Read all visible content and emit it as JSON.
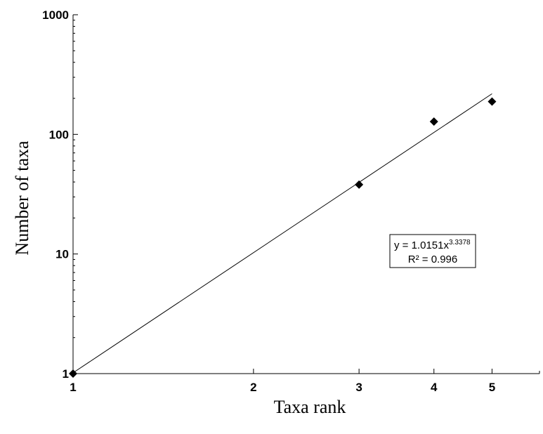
{
  "chart_data": {
    "type": "scatter",
    "title": "",
    "xlabel": "Taxa rank",
    "ylabel": "Number of taxa",
    "x_scale": "log",
    "y_scale": "log",
    "xlim": [
      1,
      6
    ],
    "ylim": [
      1,
      1000
    ],
    "x_ticks": [
      1,
      2,
      3,
      4,
      5
    ],
    "x_tick_labels": [
      "1",
      "2",
      "3",
      "4",
      "5"
    ],
    "y_ticks": [
      1,
      10,
      100,
      1000
    ],
    "y_tick_labels": [
      "1",
      "10",
      "100",
      "1000"
    ],
    "grid": false,
    "series": [
      {
        "marker": "diamond",
        "color": "#000000",
        "points": [
          {
            "x": 1,
            "y": 1
          },
          {
            "x": 3,
            "y": 38
          },
          {
            "x": 4,
            "y": 128
          },
          {
            "x": 5,
            "y": 188
          }
        ]
      }
    ],
    "trendline": {
      "type": "power",
      "a": 1.0151,
      "b": 3.3378,
      "x_range": [
        1,
        5
      ],
      "color": "#000000"
    },
    "annotation": {
      "equation_prefix": "y = 1.0151x",
      "equation_exponent": "3.3378",
      "r_squared": "R² = 0.996"
    }
  }
}
